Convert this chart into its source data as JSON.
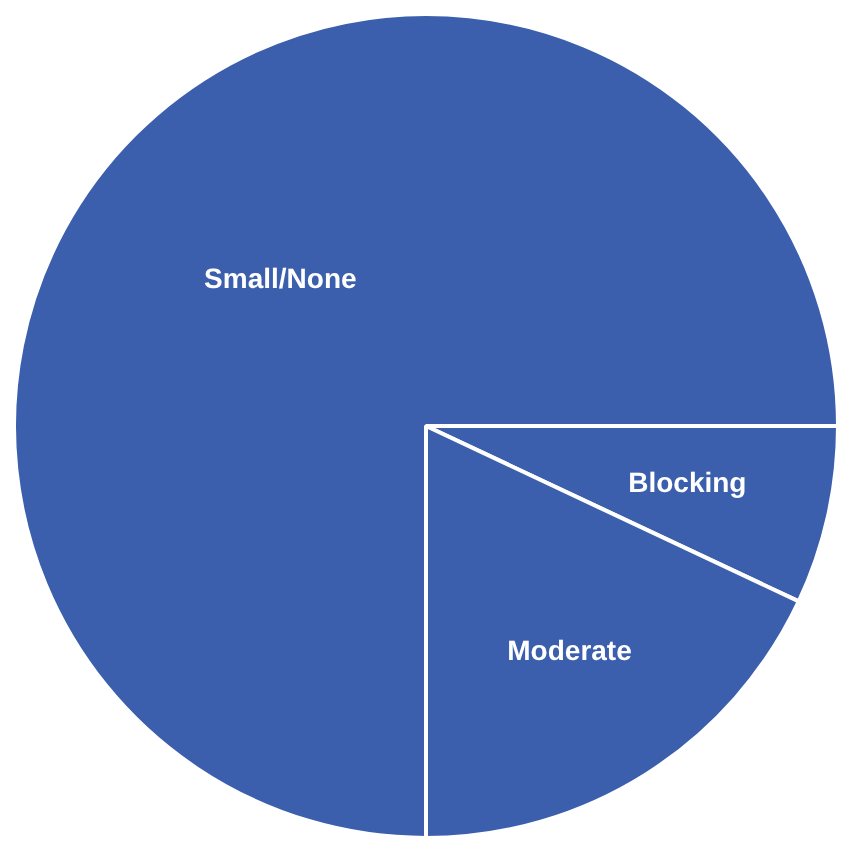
{
  "chart_data": {
    "type": "pie",
    "categories": [
      "Small/None",
      "Blocking",
      "Moderate"
    ],
    "values": [
      75,
      7,
      18
    ],
    "colors": [
      "#3b5fad",
      "#3b5fad",
      "#3b5fad"
    ],
    "legend": false
  }
}
